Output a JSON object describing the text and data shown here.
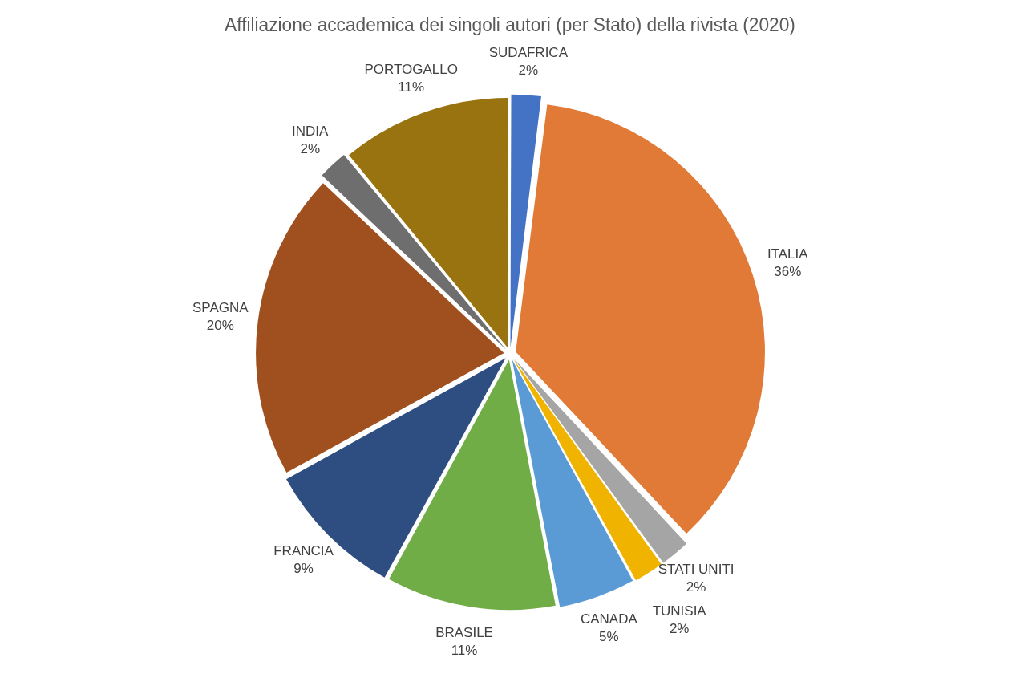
{
  "chart_data": {
    "type": "pie",
    "title": "Affiliazione accademica dei singoli autori (per Stato) della rivista (2020)",
    "categories": [
      "SUDAFRICA",
      "ITALIA",
      "STATI UNITI",
      "TUNISIA",
      "CANADA",
      "BRASILE",
      "FRANCIA",
      "SPAGNA",
      "INDIA",
      "PORTOGALLO"
    ],
    "values": [
      2,
      36,
      2,
      2,
      5,
      11,
      9,
      20,
      2,
      11
    ],
    "value_labels": [
      "2%",
      "36%",
      "2%",
      "2%",
      "5%",
      "11%",
      "9%",
      "20%",
      "2%",
      "11%"
    ],
    "colors": [
      "#4472c4",
      "#e07a36",
      "#a5a5a5",
      "#f0b400",
      "#5b9bd5",
      "#70ad47",
      "#2e4d80",
      "#a04f1e",
      "#6e6e6e",
      "#99730f"
    ],
    "legend": false
  }
}
